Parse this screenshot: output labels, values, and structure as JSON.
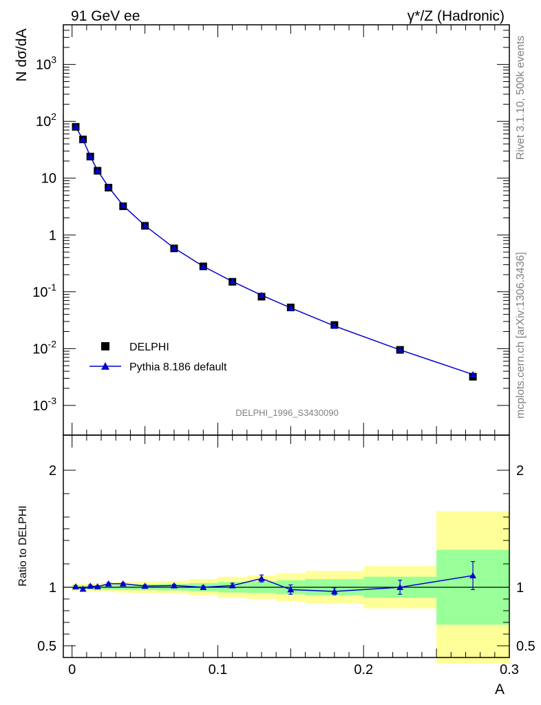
{
  "header": {
    "left": "91 GeV ee",
    "right": "γ*/Z (Hadronic)"
  },
  "side_text": {
    "rivet": "Rivet 3.1.10,  500k events",
    "mcplots": "mcplots.cern.ch [arXiv:1306.3436]"
  },
  "analysis_id": "DELPHI_1996_S3430090",
  "colors": {
    "data": "#000000",
    "mc": "#0000cc",
    "band_inner": "#99ff99",
    "band_outer": "#ffff99"
  },
  "chart_data": [
    {
      "type": "scatter",
      "panel": "main",
      "ylabel": "N dσ/dA",
      "yscale": "log",
      "xlim": [
        -0.006,
        0.3
      ],
      "ylim": [
        0.0003,
        5000
      ],
      "y_tick_labels": [
        "10-3",
        "10-2",
        "10-1",
        "1",
        "10",
        "102",
        "103"
      ],
      "legend_position": "lower-left",
      "x": [
        0.0025,
        0.0075,
        0.0125,
        0.0175,
        0.025,
        0.035,
        0.05,
        0.07,
        0.09,
        0.11,
        0.13,
        0.15,
        0.18,
        0.225,
        0.275
      ],
      "series": [
        {
          "name": "DELPHI",
          "marker": "square",
          "values": [
            80,
            48,
            24,
            13.5,
            6.8,
            3.2,
            1.45,
            0.58,
            0.28,
            0.15,
            0.082,
            0.053,
            0.026,
            0.0095,
            0.0032
          ]
        },
        {
          "name": "Pythia 8.186 default",
          "marker": "triangle",
          "line": true,
          "values": [
            80.5,
            47.6,
            24.3,
            13.6,
            7.0,
            3.3,
            1.46,
            0.59,
            0.28,
            0.152,
            0.087,
            0.052,
            0.025,
            0.0095,
            0.0035
          ]
        }
      ]
    },
    {
      "type": "line",
      "panel": "ratio",
      "xlabel": "A",
      "ylabel": "Ratio to DELPHI",
      "xlim": [
        -0.006,
        0.3
      ],
      "ylim": [
        0.4,
        2.3
      ],
      "x_ticks": [
        0,
        0.1,
        0.2,
        0.3
      ],
      "x_tick_labels": [
        "0",
        "0.1",
        "0.2",
        "0.3"
      ],
      "y_ticks": [
        0.5,
        1,
        2
      ],
      "y_tick_labels": [
        "0.5",
        "1",
        "2"
      ],
      "bins": [
        0,
        0.005,
        0.01,
        0.015,
        0.02,
        0.03,
        0.04,
        0.06,
        0.08,
        0.1,
        0.12,
        0.14,
        0.16,
        0.2,
        0.25,
        0.3
      ],
      "band_inner": [
        0.015,
        0.015,
        0.018,
        0.018,
        0.02,
        0.022,
        0.025,
        0.028,
        0.035,
        0.045,
        0.05,
        0.06,
        0.07,
        0.09,
        0.32
      ],
      "band_outer": [
        0.03,
        0.03,
        0.035,
        0.035,
        0.04,
        0.045,
        0.05,
        0.055,
        0.07,
        0.09,
        0.1,
        0.12,
        0.14,
        0.18,
        0.65
      ],
      "x": [
        0.0025,
        0.0075,
        0.0125,
        0.0175,
        0.025,
        0.035,
        0.05,
        0.07,
        0.09,
        0.11,
        0.13,
        0.15,
        0.18,
        0.225,
        0.275
      ],
      "series": [
        {
          "name": "Pythia 8.186 default",
          "values": [
            1.005,
            0.985,
            1.01,
            1.005,
            1.03,
            1.03,
            1.01,
            1.015,
            1.0,
            1.015,
            1.075,
            0.98,
            0.965,
            1.0,
            1.1
          ],
          "errors": [
            0.01,
            0.01,
            0.01,
            0.01,
            0.01,
            0.01,
            0.01,
            0.01,
            0.012,
            0.02,
            0.03,
            0.04,
            0.03,
            0.06,
            0.12
          ]
        }
      ]
    }
  ]
}
